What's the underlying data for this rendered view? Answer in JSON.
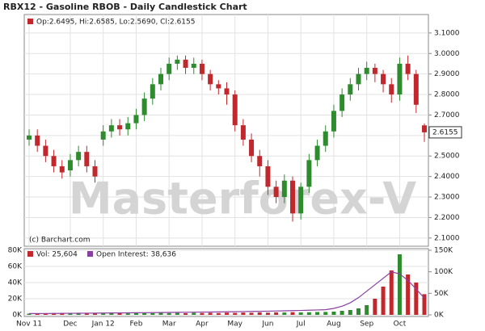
{
  "chart_data": [
    {
      "type": "candlestick",
      "title": "RBX12 - Gasoline RBOB - Daily Candlestick Chart",
      "ohlc_text": "Op:2.6495, Hi:2.6585, Lo:2.5690, Cl:2.6155",
      "copyright": "(c) Barchart.com",
      "watermark": "Masterforex-V",
      "categories": [
        "Nov 11",
        null,
        null,
        null,
        null,
        "Dec",
        null,
        null,
        null,
        "Jan 12",
        null,
        null,
        null,
        "Feb",
        null,
        null,
        null,
        "Mar",
        null,
        null,
        null,
        "Apr",
        null,
        null,
        null,
        "May",
        null,
        null,
        null,
        "Jun",
        null,
        null,
        null,
        "Jul",
        null,
        null,
        null,
        "Aug",
        null,
        null,
        null,
        "Sep",
        null,
        null,
        null,
        "Oct",
        null,
        null,
        null
      ],
      "open": [
        2.58,
        2.6,
        2.55,
        2.5,
        2.45,
        2.43,
        2.48,
        2.52,
        2.45,
        2.58,
        2.62,
        2.65,
        2.63,
        2.66,
        2.7,
        2.78,
        2.85,
        2.9,
        2.95,
        2.97,
        2.93,
        2.95,
        2.9,
        2.85,
        2.83,
        2.8,
        2.65,
        2.58,
        2.5,
        2.45,
        2.35,
        2.3,
        2.38,
        2.22,
        2.35,
        2.48,
        2.55,
        2.62,
        2.72,
        2.8,
        2.85,
        2.9,
        2.93,
        2.9,
        2.85,
        2.8,
        2.95,
        2.9,
        2.6495
      ],
      "high": [
        2.63,
        2.63,
        2.58,
        2.53,
        2.48,
        2.51,
        2.55,
        2.55,
        2.48,
        2.65,
        2.68,
        2.68,
        2.69,
        2.73,
        2.81,
        2.88,
        2.93,
        2.98,
        2.99,
        2.99,
        2.98,
        2.97,
        2.92,
        2.87,
        2.86,
        2.82,
        2.68,
        2.61,
        2.53,
        2.48,
        2.38,
        2.41,
        2.4,
        2.37,
        2.51,
        2.58,
        2.65,
        2.75,
        2.83,
        2.88,
        2.93,
        2.96,
        2.95,
        2.92,
        2.88,
        2.98,
        2.99,
        2.92,
        2.6585
      ],
      "low": [
        2.55,
        2.52,
        2.47,
        2.42,
        2.39,
        2.4,
        2.45,
        2.42,
        2.37,
        2.55,
        2.59,
        2.6,
        2.6,
        2.63,
        2.67,
        2.75,
        2.82,
        2.87,
        2.92,
        2.9,
        2.9,
        2.87,
        2.82,
        2.8,
        2.75,
        2.62,
        2.55,
        2.47,
        2.4,
        2.31,
        2.27,
        2.27,
        2.18,
        2.19,
        2.32,
        2.45,
        2.52,
        2.59,
        2.69,
        2.77,
        2.82,
        2.87,
        2.86,
        2.81,
        2.76,
        2.77,
        2.87,
        2.71,
        2.569
      ],
      "close": [
        2.6,
        2.55,
        2.5,
        2.45,
        2.42,
        2.48,
        2.52,
        2.45,
        2.4,
        2.62,
        2.65,
        2.63,
        2.66,
        2.7,
        2.78,
        2.85,
        2.9,
        2.95,
        2.97,
        2.93,
        2.95,
        2.9,
        2.85,
        2.83,
        2.8,
        2.65,
        2.58,
        2.5,
        2.45,
        2.35,
        2.3,
        2.38,
        2.22,
        2.35,
        2.48,
        2.55,
        2.62,
        2.72,
        2.8,
        2.85,
        2.9,
        2.93,
        2.9,
        2.85,
        2.8,
        2.95,
        2.9,
        2.75,
        2.6155
      ],
      "up_color": "#2e8b2e",
      "down_color": "#c0282d",
      "legend_color": "#c0282d",
      "ylim": [
        2.06,
        3.19
      ],
      "yticks": [
        {
          "value": 2.1,
          "label": "2.1000"
        },
        {
          "value": 2.2,
          "label": "2.2000"
        },
        {
          "value": 2.3,
          "label": "2.3000"
        },
        {
          "value": 2.4,
          "label": "2.4000"
        },
        {
          "value": 2.5,
          "label": "2.5000"
        },
        {
          "value": 2.6,
          "label": "2.6000"
        },
        {
          "value": 2.7,
          "label": "2.7000"
        },
        {
          "value": 2.8,
          "label": "2.8000"
        },
        {
          "value": 2.9,
          "label": "2.9000"
        },
        {
          "value": 3.0,
          "label": "3.0000"
        },
        {
          "value": 3.1,
          "label": "3.1000"
        }
      ],
      "grid": true
    },
    {
      "type": "bar",
      "series": [
        {
          "name": "Vol: 25,604",
          "color": "#c0282d",
          "values": [
            1500,
            2000,
            1800,
            2200,
            1600,
            2000,
            1700,
            1500,
            2100,
            1800,
            2000,
            2200,
            1900,
            2100,
            2300,
            2000,
            2500,
            2200,
            2400,
            2100,
            2600,
            2300,
            2500,
            2200,
            2700,
            2400,
            2800,
            2600,
            3000,
            2700,
            3100,
            2900,
            3300,
            3000,
            3200,
            3500,
            3600,
            4000,
            5000,
            6000,
            8000,
            12000,
            20000,
            35000,
            55000,
            75000,
            50000,
            40000,
            25604
          ]
        },
        {
          "name": "Open Interest: 38,636",
          "color": "#8b3fa0",
          "axis": "y2",
          "values": [
            3000,
            3100,
            3200,
            3300,
            3500,
            3600,
            3700,
            3900,
            4000,
            4200,
            4400,
            4500,
            4700,
            4900,
            5000,
            5200,
            5400,
            5600,
            5800,
            6000,
            6200,
            6400,
            6600,
            6800,
            7000,
            7300,
            7600,
            7900,
            8200,
            8600,
            9000,
            9400,
            9800,
            10200,
            10800,
            11400,
            12000,
            15000,
            20000,
            28000,
            40000,
            55000,
            70000,
            85000,
            100000,
            95000,
            80000,
            60000,
            38636
          ]
        }
      ],
      "ylim": [
        0,
        80000
      ],
      "yticks": [
        {
          "value": 0,
          "label": "0K"
        },
        {
          "value": 20000,
          "label": "20K"
        },
        {
          "value": 40000,
          "label": "40K"
        },
        {
          "value": 60000,
          "label": "60K"
        },
        {
          "value": 80000,
          "label": "80K"
        }
      ],
      "y2lim": [
        0,
        150000
      ],
      "y2ticks": [
        {
          "value": 0,
          "label": "0K"
        },
        {
          "value": 50000,
          "label": "50K"
        },
        {
          "value": 100000,
          "label": "100K"
        },
        {
          "value": 150000,
          "label": "150K"
        }
      ],
      "grid": true
    }
  ]
}
